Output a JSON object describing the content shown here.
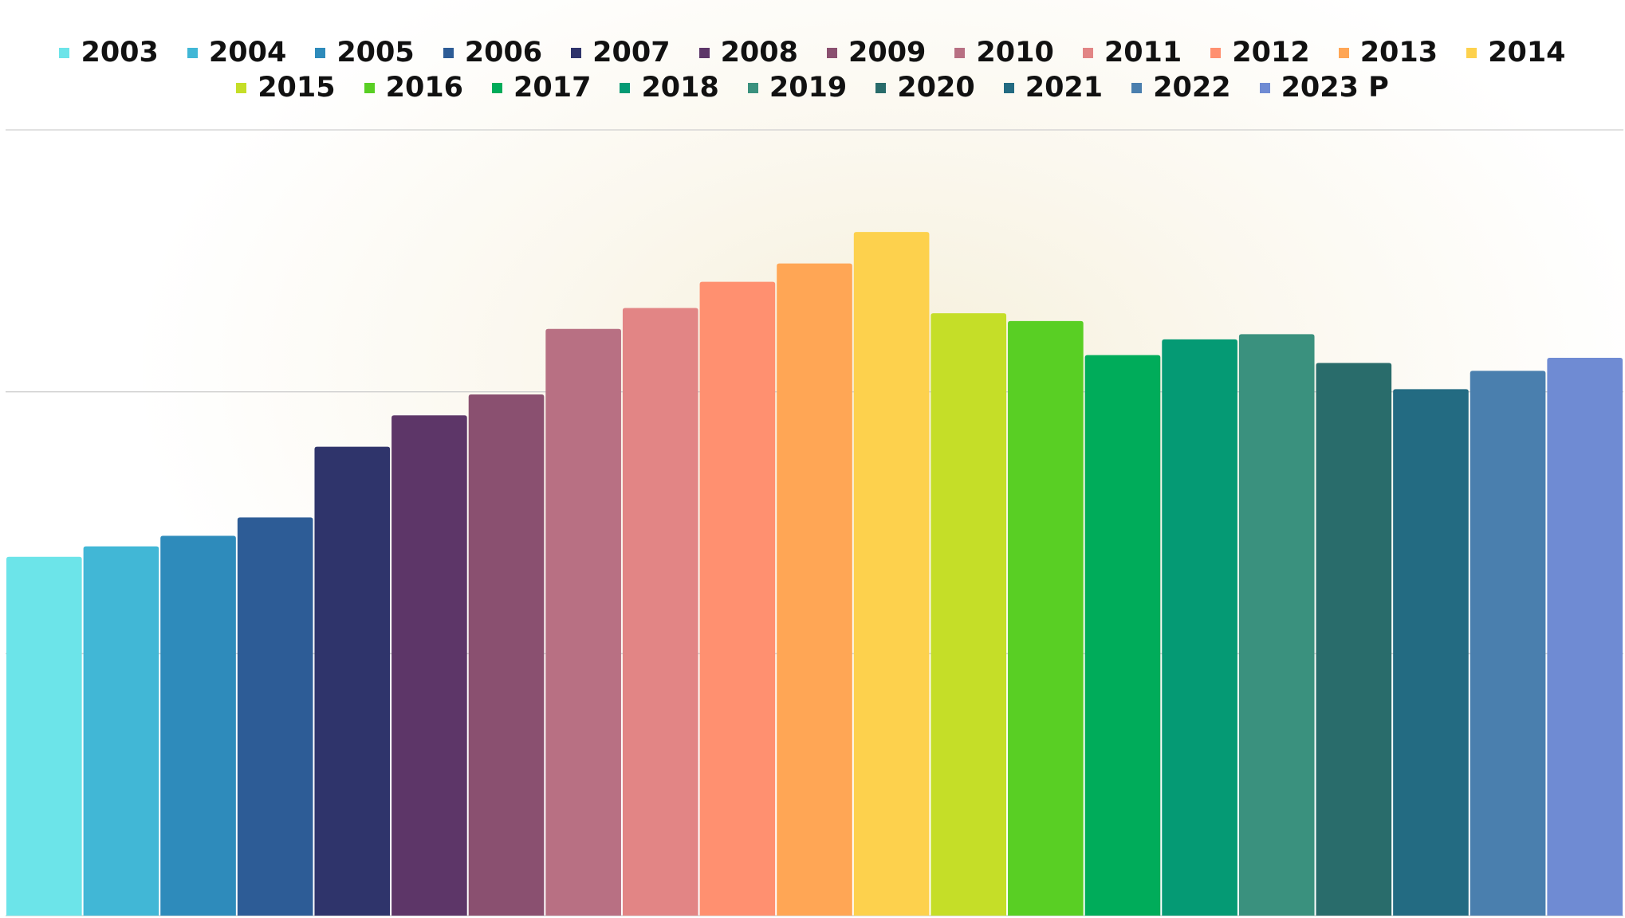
{
  "chart_data": {
    "type": "bar",
    "categories": [
      "2003",
      "2004",
      "2005",
      "2006",
      "2007",
      "2008",
      "2009",
      "2010",
      "2011",
      "2012",
      "2013",
      "2014",
      "2015",
      "2016",
      "2017",
      "2018",
      "2019",
      "2020",
      "2021",
      "2022",
      "2023 P"
    ],
    "values": [
      1.37,
      1.41,
      1.45,
      1.52,
      1.79,
      1.91,
      1.99,
      2.24,
      2.32,
      2.42,
      2.49,
      2.61,
      2.3,
      2.27,
      2.14,
      2.2,
      2.22,
      2.11,
      2.01,
      2.08,
      2.13
    ],
    "colors": [
      "#6ce4e9",
      "#41b7d6",
      "#2e8bbb",
      "#2d5c96",
      "#2f346b",
      "#5d3668",
      "#8a5070",
      "#b87083",
      "#e28585",
      "#ff9070",
      "#ffa655",
      "#fdd14d",
      "#c5de28",
      "#59cf24",
      "#00ac5a",
      "#059a74",
      "#3a917e",
      "#296c6b",
      "#236b82",
      "#4a7fae",
      "#6f8bd3"
    ],
    "ylim": [
      0,
      3
    ],
    "yticks": [
      0,
      1,
      2,
      3
    ],
    "grid": true
  }
}
